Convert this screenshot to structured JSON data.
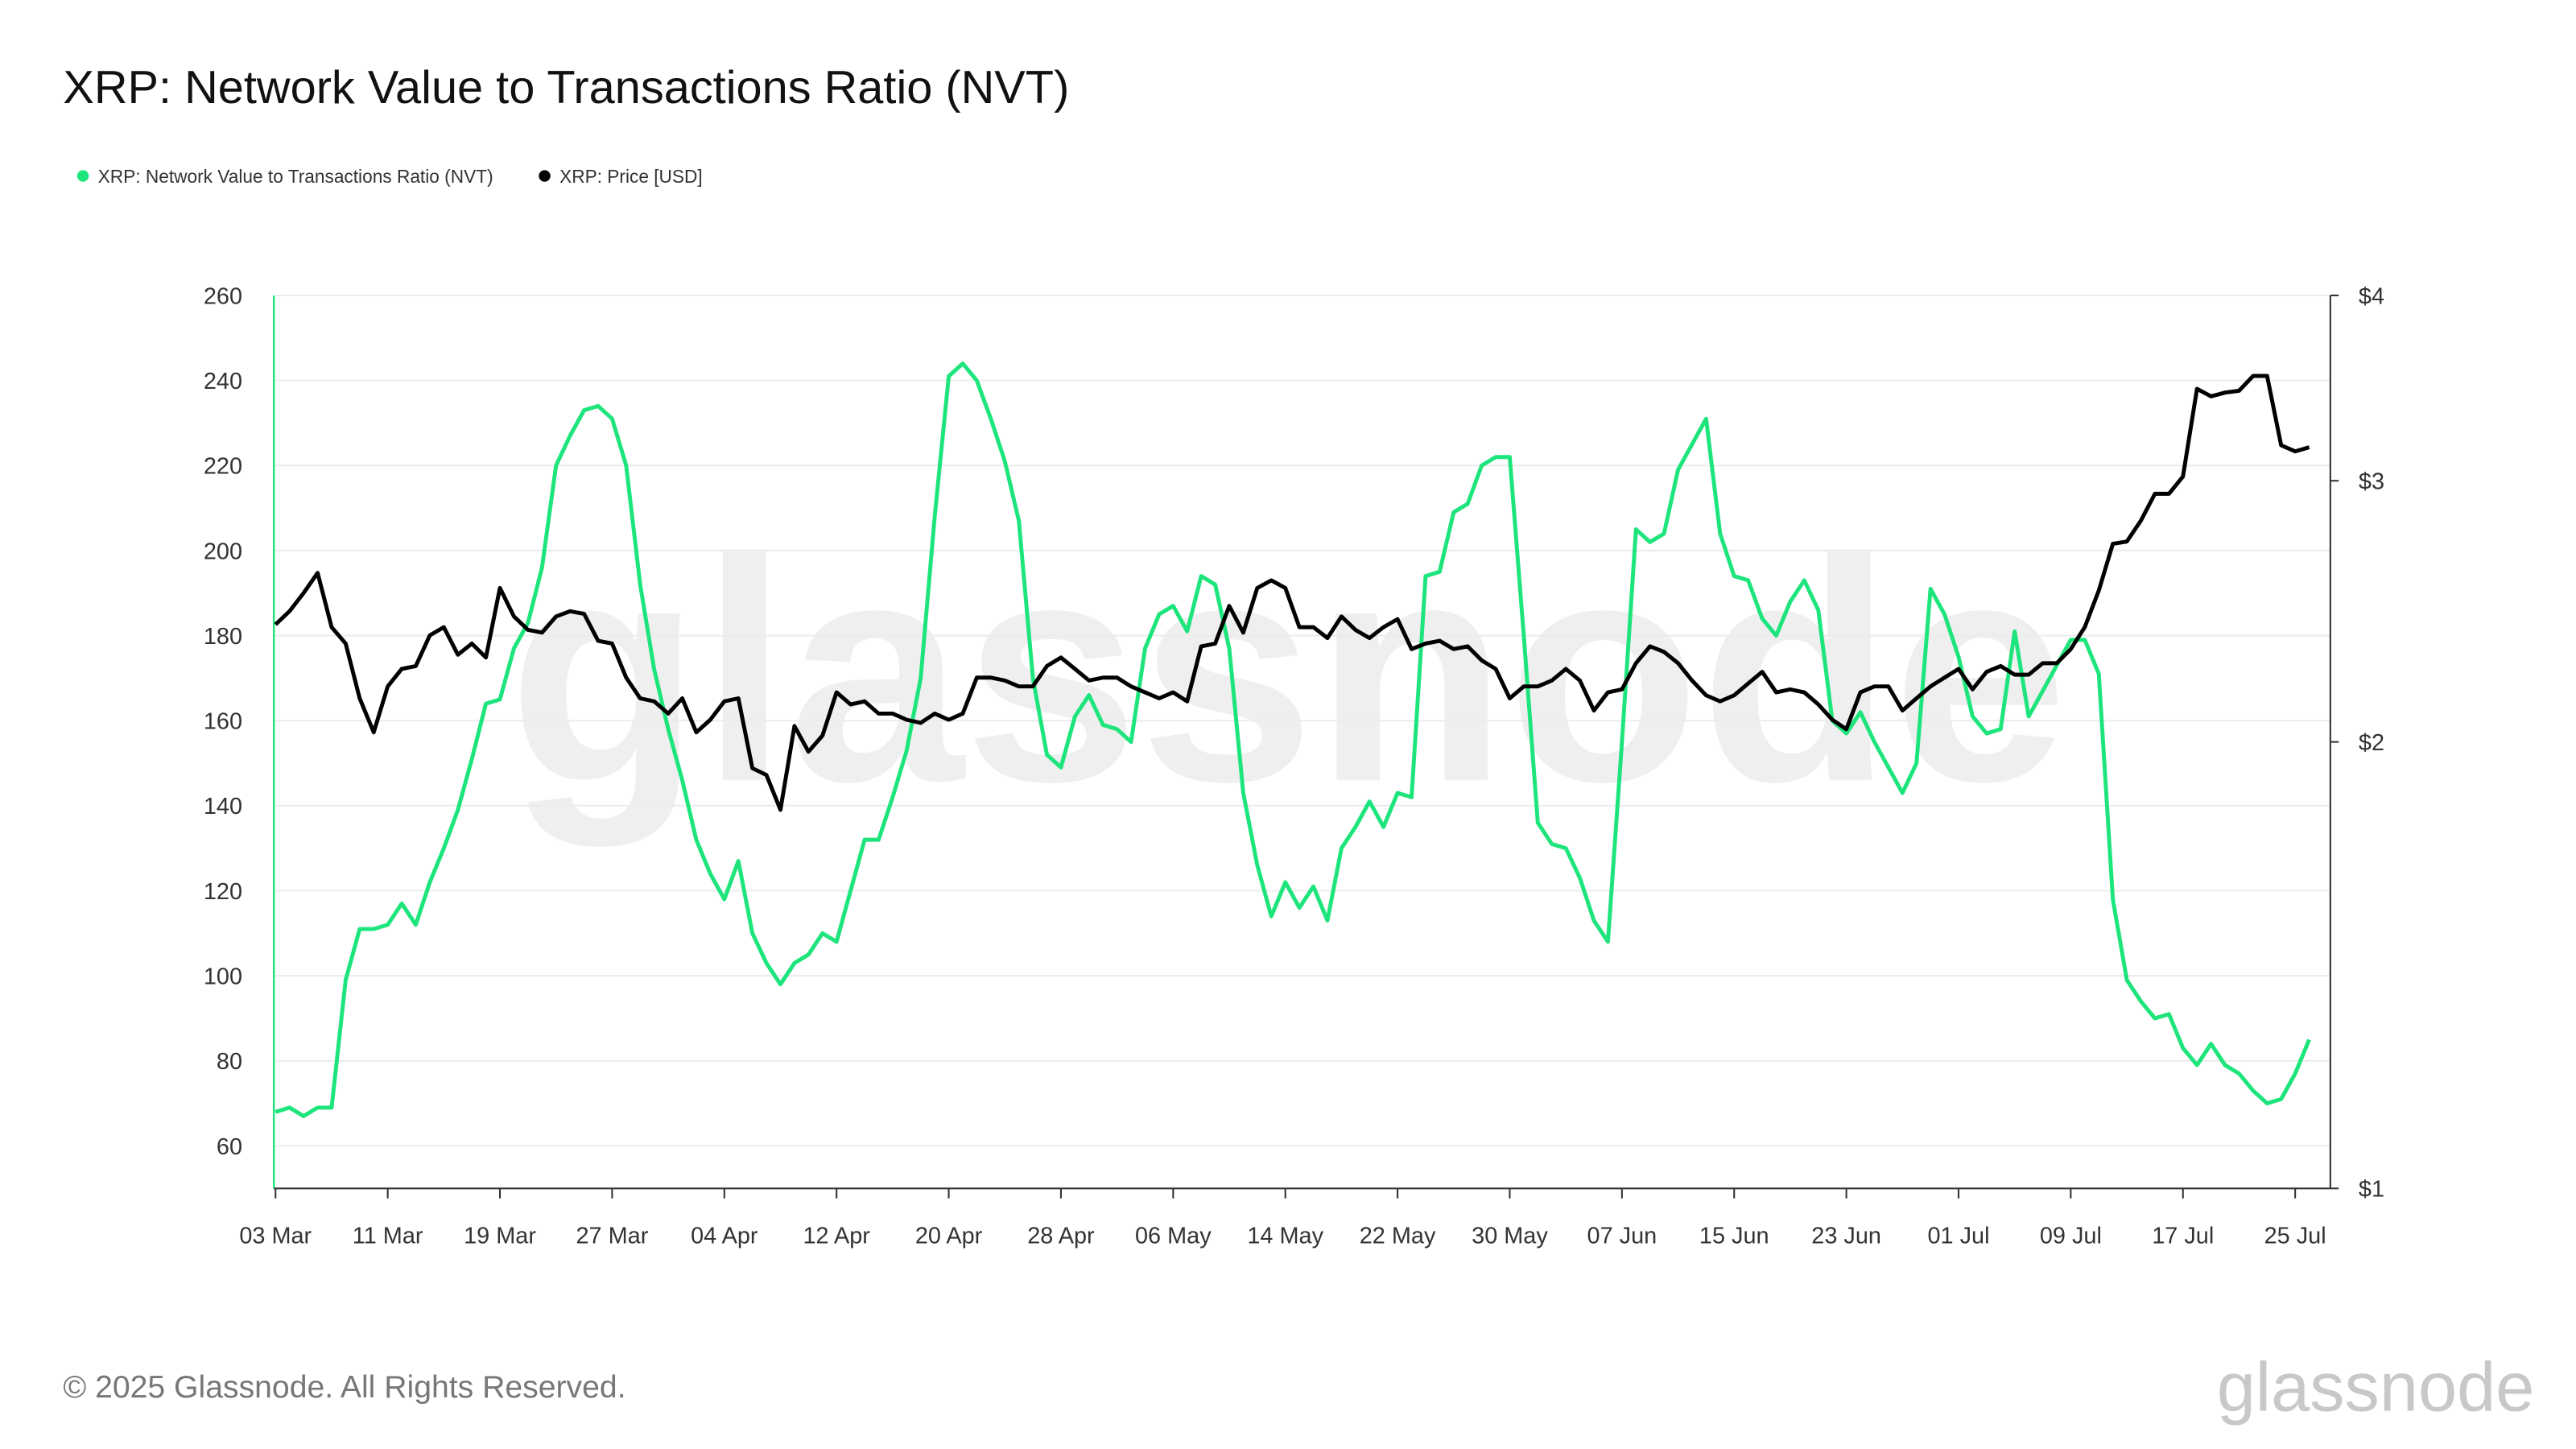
{
  "chart_data": {
    "type": "line",
    "title": "XRP: Network Value to Transactions Ratio (NVT)",
    "footer": "© 2025 Glassnode. All Rights Reserved.",
    "watermark": "glassnode",
    "categories": [
      "03 Mar",
      null,
      null,
      null,
      null,
      null,
      null,
      null,
      "11 Mar",
      null,
      null,
      null,
      null,
      null,
      null,
      null,
      "19 Mar",
      null,
      null,
      null,
      null,
      null,
      null,
      null,
      "27 Mar",
      null,
      null,
      null,
      null,
      null,
      null,
      null,
      "04 Apr",
      null,
      null,
      null,
      null,
      null,
      null,
      null,
      "12 Apr",
      null,
      null,
      null,
      null,
      null,
      null,
      null,
      "20 Apr",
      null,
      null,
      null,
      null,
      null,
      null,
      null,
      "28 Apr",
      null,
      null,
      null,
      null,
      null,
      null,
      null,
      "06 May",
      null,
      null,
      null,
      null,
      null,
      null,
      null,
      "14 May",
      null,
      null,
      null,
      null,
      null,
      null,
      null,
      "22 May",
      null,
      null,
      null,
      null,
      null,
      null,
      null,
      "30 May",
      null,
      null,
      null,
      null,
      null,
      null,
      null,
      "07 Jun",
      null,
      null,
      null,
      null,
      null,
      null,
      null,
      "15 Jun",
      null,
      null,
      null,
      null,
      null,
      null,
      null,
      "23 Jun",
      null,
      null,
      null,
      null,
      null,
      null,
      null,
      "01 Jul",
      null,
      null,
      null,
      null,
      null,
      null,
      null,
      "09 Jul",
      null,
      null,
      null,
      null,
      null,
      null,
      null,
      "17 Jul",
      null,
      null,
      null,
      null,
      null,
      null,
      null,
      "25 Jul",
      null
    ],
    "series": [
      {
        "name": "XRP: Network Value to Transactions Ratio (NVT)",
        "color": "#1de57c",
        "axis": "y",
        "values": [
          68,
          69,
          67,
          69,
          69,
          99,
          111,
          111,
          112,
          117,
          112,
          122,
          130,
          139,
          151,
          164,
          165,
          177,
          183,
          196,
          220,
          227,
          233,
          234,
          231,
          220,
          192,
          172,
          158,
          146,
          132,
          124,
          118,
          127,
          110,
          103,
          98,
          103,
          105,
          110,
          108,
          120,
          132,
          132,
          142,
          153,
          170,
          208,
          241,
          244,
          240,
          231,
          221,
          207,
          170,
          152,
          149,
          161,
          166,
          159,
          158,
          155,
          177,
          185,
          187,
          181,
          194,
          192,
          177,
          143,
          126,
          114,
          122,
          116,
          121,
          113,
          130,
          135,
          141,
          135,
          143,
          142,
          194,
          195,
          209,
          211,
          220,
          222,
          222,
          180,
          136,
          131,
          130,
          123,
          113,
          108,
          155,
          205,
          202,
          204,
          219,
          225,
          231,
          204,
          194,
          193,
          184,
          180,
          188,
          193,
          186,
          160,
          157,
          162,
          155,
          149,
          143,
          150,
          191,
          185,
          175,
          161,
          157,
          158,
          181,
          161,
          167,
          173,
          179,
          179,
          171,
          118,
          99,
          94,
          90,
          91,
          83,
          79,
          84,
          79,
          77,
          73,
          70,
          71,
          77,
          85
        ]
      },
      {
        "name": "XRP: Price [USD]",
        "color": "#000000",
        "axis": "y2",
        "values": [
          2.4,
          2.45,
          2.52,
          2.6,
          2.39,
          2.33,
          2.14,
          2.03,
          2.18,
          2.24,
          2.25,
          2.36,
          2.39,
          2.29,
          2.33,
          2.28,
          2.54,
          2.43,
          2.38,
          2.37,
          2.43,
          2.45,
          2.44,
          2.34,
          2.33,
          2.21,
          2.14,
          2.13,
          2.09,
          2.14,
          2.03,
          2.07,
          2.13,
          2.14,
          1.92,
          1.9,
          1.8,
          2.05,
          1.97,
          2.02,
          2.16,
          2.12,
          2.13,
          2.09,
          2.09,
          2.07,
          2.06,
          2.09,
          2.07,
          2.09,
          2.21,
          2.21,
          2.2,
          2.18,
          2.18,
          2.25,
          2.28,
          2.24,
          2.2,
          2.21,
          2.21,
          2.18,
          2.16,
          2.14,
          2.16,
          2.13,
          2.32,
          2.33,
          2.47,
          2.37,
          2.54,
          2.57,
          2.54,
          2.39,
          2.39,
          2.35,
          2.43,
          2.38,
          2.35,
          2.39,
          2.42,
          2.31,
          2.33,
          2.34,
          2.31,
          2.32,
          2.27,
          2.24,
          2.14,
          2.18,
          2.18,
          2.2,
          2.24,
          2.2,
          2.1,
          2.16,
          2.17,
          2.26,
          2.32,
          2.3,
          2.26,
          2.2,
          2.15,
          2.13,
          2.15,
          2.19,
          2.23,
          2.16,
          2.17,
          2.16,
          2.12,
          2.07,
          2.04,
          2.16,
          2.18,
          2.18,
          2.1,
          2.14,
          2.18,
          2.21,
          2.24,
          2.17,
          2.23,
          2.25,
          2.22,
          2.22,
          2.26,
          2.26,
          2.31,
          2.39,
          2.53,
          2.72,
          2.73,
          2.82,
          2.94,
          2.94,
          3.02,
          3.46,
          3.42,
          3.44,
          3.45,
          3.53,
          3.53,
          3.17,
          3.14,
          3.16
        ]
      }
    ],
    "ylim": [
      50,
      260
    ],
    "yticks": [
      60,
      80,
      100,
      120,
      140,
      160,
      180,
      200,
      220,
      240,
      260
    ],
    "y2lim": [
      1,
      4
    ],
    "y2ticks": [
      {
        "value": 1,
        "label": "$1"
      },
      {
        "value": 2,
        "label": "$2"
      },
      {
        "value": 3,
        "label": "$3"
      },
      {
        "value": 4,
        "label": "$4"
      }
    ],
    "y2log": true,
    "grid": true,
    "legend": "top-left"
  }
}
